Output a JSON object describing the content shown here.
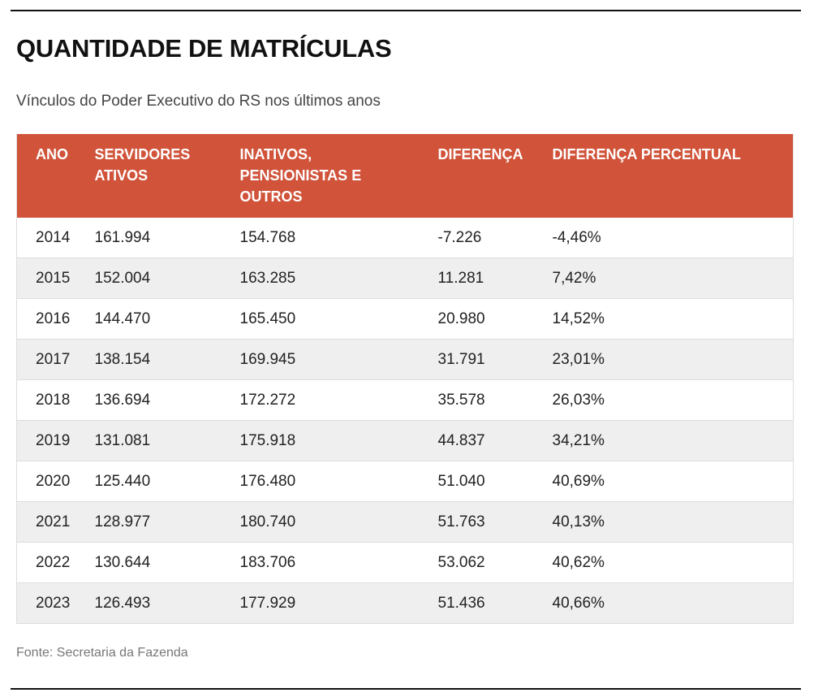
{
  "title": "QUANTIDADE DE MATRÍCULAS",
  "subtitle": "Vínculos do Poder Executivo do RS nos últimos anos",
  "source": "Fonte: Secretaria da Fazenda",
  "colors": {
    "header": "#d0533a",
    "alt_row": "#efefef"
  },
  "chart_data": {
    "type": "table",
    "title": "QUANTIDADE DE MATRÍCULAS",
    "columns": [
      "ANO",
      "SERVIDORES ATIVOS",
      "INATIVOS, PENSIONISTAS E OUTROS",
      "DIFERENÇA",
      "DIFERENÇA PERCENTUAL"
    ],
    "rows": [
      [
        "2014",
        "161.994",
        "154.768",
        "-7.226",
        "-4,46%"
      ],
      [
        "2015",
        "152.004",
        "163.285",
        "11.281",
        "7,42%"
      ],
      [
        "2016",
        "144.470",
        "165.450",
        "20.980",
        "14,52%"
      ],
      [
        "2017",
        "138.154",
        "169.945",
        "31.791",
        "23,01%"
      ],
      [
        "2018",
        "136.694",
        "172.272",
        "35.578",
        "26,03%"
      ],
      [
        "2019",
        "131.081",
        "175.918",
        "44.837",
        "34,21%"
      ],
      [
        "2020",
        "125.440",
        "176.480",
        "51.040",
        "40,69%"
      ],
      [
        "2021",
        "128.977",
        "180.740",
        "51.763",
        "40,13%"
      ],
      [
        "2022",
        "130.644",
        "183.706",
        "53.062",
        "40,62%"
      ],
      [
        "2023",
        "126.493",
        "177.929",
        "51.436",
        "40,66%"
      ]
    ]
  }
}
